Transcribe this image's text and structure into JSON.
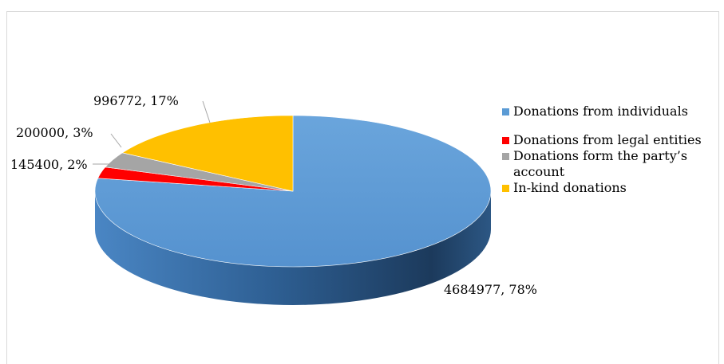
{
  "chart_data": {
    "type": "pie",
    "title": "",
    "categories": [
      "Donations from individuals",
      "Donations from legal entities",
      "Donations form the party’s account",
      "In-kind donations"
    ],
    "values": [
      4684977,
      145400,
      200000,
      996772
    ],
    "percentages": [
      78,
      2,
      3,
      17
    ],
    "data_labels": [
      "4684977, 78%",
      "145400, 2%",
      "200000, 3%",
      "996772, 17%"
    ],
    "colors": [
      "#5b9bd5",
      "#ff0000",
      "#a5a5a5",
      "#ffc000"
    ],
    "legend_position": "right",
    "style": "3d"
  }
}
